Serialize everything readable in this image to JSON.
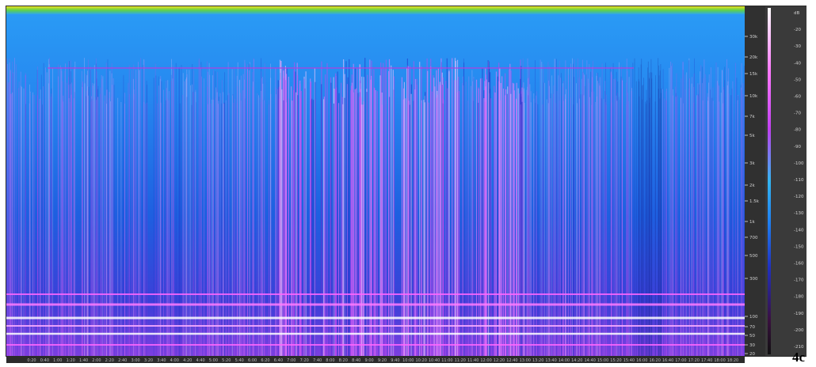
{
  "panel_label": "4c",
  "chart_data": {
    "type": "heatmap",
    "title": "",
    "xlabel": "",
    "ylabel": "",
    "frequency_ticks_hz": [
      "30k",
      "20k",
      "15k",
      "10k",
      "7k",
      "5k",
      "3k",
      "2k",
      "1.5k",
      "1k",
      "700",
      "500",
      "300",
      "100",
      "70",
      "50",
      "30",
      "20"
    ],
    "level_ticks_db": [
      "dB",
      "-20",
      "-30",
      "-40",
      "-50",
      "-60",
      "-70",
      "-80",
      "-90",
      "-100",
      "-110",
      "-120",
      "-130",
      "-140",
      "-150",
      "-160",
      "-170",
      "-180",
      "-190",
      "-200",
      "-210"
    ],
    "time_ticks": [
      "0:20",
      "0:40",
      "1:00",
      "1:20",
      "1:40",
      "2:00",
      "2:20",
      "2:40",
      "3:00",
      "3:20",
      "3:40",
      "4:00",
      "4:20",
      "4:40",
      "5:00",
      "5:20",
      "5:40",
      "6:00",
      "6:20",
      "6:40",
      "7:00",
      "7:20",
      "7:40",
      "8:00",
      "8:20",
      "8:40",
      "9:00",
      "9:20",
      "9:40",
      "10:00",
      "10:20",
      "10:40",
      "11:00",
      "11:20",
      "11:40",
      "12:00",
      "12:20",
      "12:40",
      "13:00",
      "13:20",
      "13:40",
      "14:00",
      "14:20",
      "14:40",
      "15:00",
      "15:20",
      "15:40",
      "16:00",
      "16:20",
      "16:40",
      "17:00",
      "17:20",
      "17:40",
      "18:00",
      "18:20"
    ],
    "colormap": [
      "#1a0b2e",
      "#2a1a8a",
      "#1f3fd6",
      "#1f7ff0",
      "#33b5f0",
      "#7a6ff0",
      "#c24bf0",
      "#ff66ff",
      "#ffd0ff",
      "#ffffff"
    ],
    "background_color": "#1f80ef",
    "highlight_color": "#ff7bff"
  }
}
